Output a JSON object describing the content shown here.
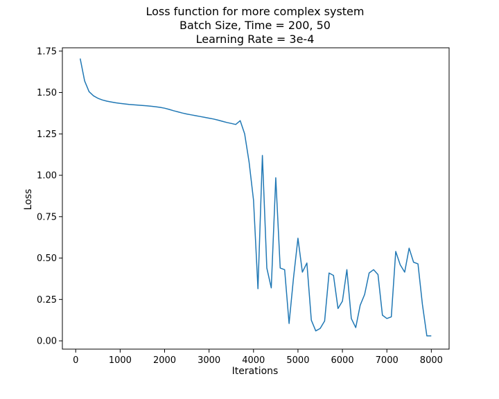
{
  "chart_data": {
    "type": "line",
    "title_lines": [
      "Loss function for more complex system",
      "Batch Size, Time = 200, 50",
      "Learning Rate = 3e-4"
    ],
    "xlabel": "Iterations",
    "ylabel": "Loss",
    "xlim": [
      -300,
      8400
    ],
    "ylim": [
      -0.05,
      1.77
    ],
    "xticks": [
      0,
      1000,
      2000,
      3000,
      4000,
      5000,
      6000,
      7000,
      8000
    ],
    "xtick_labels": [
      "0",
      "1000",
      "2000",
      "3000",
      "4000",
      "5000",
      "6000",
      "7000",
      "8000"
    ],
    "yticks": [
      0.0,
      0.25,
      0.5,
      0.75,
      1.0,
      1.25,
      1.5,
      1.75
    ],
    "ytick_labels": [
      "0.00",
      "0.25",
      "0.50",
      "0.75",
      "1.00",
      "1.25",
      "1.50",
      "1.75"
    ],
    "grid": false,
    "series": [
      {
        "color": "#1f77b4",
        "x": [
          100,
          200,
          300,
          400,
          500,
          600,
          700,
          800,
          900,
          1000,
          1100,
          1200,
          1300,
          1400,
          1500,
          1600,
          1700,
          1800,
          1900,
          2000,
          2100,
          2200,
          2300,
          2400,
          2500,
          2600,
          2700,
          2800,
          2900,
          3000,
          3100,
          3200,
          3300,
          3400,
          3500,
          3600,
          3700,
          3800,
          3900,
          4000,
          4100,
          4200,
          4300,
          4400,
          4500,
          4600,
          4700,
          4800,
          4900,
          5000,
          5100,
          5200,
          5300,
          5400,
          5500,
          5600,
          5700,
          5800,
          5900,
          6000,
          6100,
          6200,
          6300,
          6400,
          6500,
          6600,
          6700,
          6800,
          6900,
          7000,
          7100,
          7200,
          7300,
          7400,
          7500,
          7600,
          7700,
          7800,
          7900,
          8000
        ],
        "values": [
          1.705,
          1.57,
          1.505,
          1.48,
          1.465,
          1.455,
          1.448,
          1.443,
          1.438,
          1.434,
          1.431,
          1.428,
          1.426,
          1.424,
          1.422,
          1.42,
          1.417,
          1.414,
          1.41,
          1.405,
          1.398,
          1.39,
          1.383,
          1.376,
          1.37,
          1.365,
          1.36,
          1.355,
          1.35,
          1.345,
          1.34,
          1.333,
          1.326,
          1.319,
          1.313,
          1.307,
          1.33,
          1.25,
          1.08,
          0.85,
          0.315,
          1.12,
          0.44,
          0.32,
          0.985,
          0.44,
          0.43,
          0.105,
          0.38,
          0.62,
          0.415,
          0.47,
          0.125,
          0.06,
          0.075,
          0.12,
          0.41,
          0.395,
          0.195,
          0.24,
          0.43,
          0.135,
          0.08,
          0.215,
          0.28,
          0.41,
          0.43,
          0.4,
          0.155,
          0.135,
          0.145,
          0.54,
          0.46,
          0.415,
          0.56,
          0.475,
          0.465,
          0.22,
          0.03,
          0.03
        ]
      }
    ]
  }
}
